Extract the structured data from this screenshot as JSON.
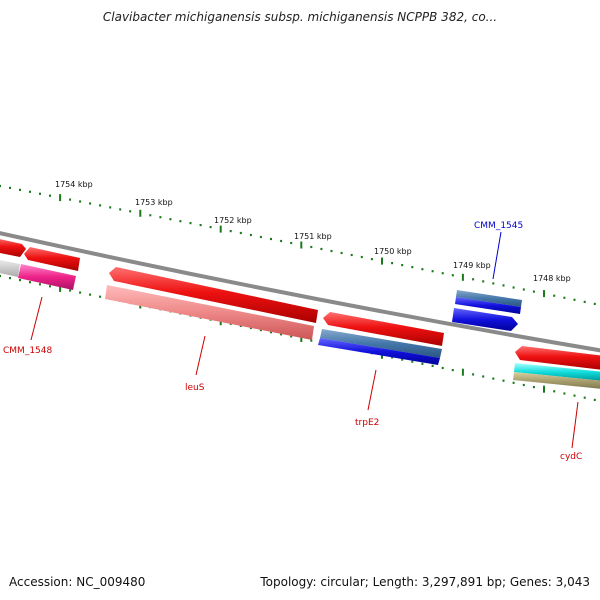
{
  "title": "Clavibacter michiganensis subsp. michiganensis NCPPB 382, co...",
  "footer": {
    "accession": "Accession: NC_009480",
    "summary": "Topology: circular; Length: 3,297,891 bp; Genes: 3,043"
  },
  "scale_labels": [
    "1754 kbp",
    "1753 kbp",
    "1752 kbp",
    "1751 kbp",
    "1750 kbp",
    "1749 kbp",
    "1748 kbp"
  ],
  "gene_labels": {
    "cmm1545": "CMM_1545",
    "cmm1548": "CMM_1548",
    "leus": "leuS",
    "trpe2": "trpE2",
    "cydc": "cydC"
  },
  "colors": {
    "forward_gene": "#ee1111",
    "reverse_gene": "#ee1111",
    "label_red": "#cc0000",
    "label_blue": "#0000cc",
    "tick_green": "#1a7a1a",
    "backbone": "#888888",
    "cog_pink": "#ee2288",
    "cog_salmon": "#ee8888",
    "cog_blue": "#1111dd",
    "cog_steel": "#4477aa",
    "cog_cyan": "#11dddd",
    "cog_khaki": "#aaa070"
  }
}
